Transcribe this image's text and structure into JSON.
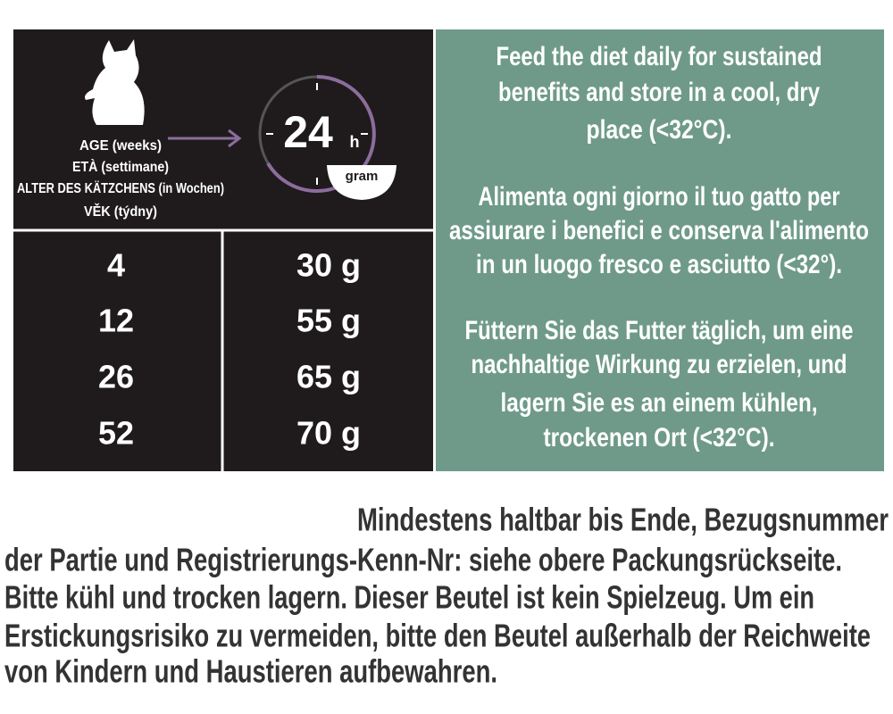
{
  "header": {
    "age_labels": [
      "AGE (weeks)",
      "ETÀ (settimane)",
      "ALTER DES KÄTZCHENS (in Wochen)",
      "VĚK (týdny)"
    ],
    "clock_number": "24",
    "clock_unit": "h",
    "bowl_label": "gram"
  },
  "table": {
    "rows": [
      [
        "4",
        "30 g"
      ],
      [
        "12",
        "55 g"
      ],
      [
        "26",
        "65 g"
      ],
      [
        "52",
        "70 g"
      ]
    ]
  },
  "storage": {
    "paragraphs": [
      [
        "Feed the diet daily for sustained",
        "benefits and store in a cool, dry",
        "place (<32°C)."
      ],
      [
        "Alimenta ogni giorno il tuo gatto per",
        "assiurare i benefici e conserva l'alimento",
        "in un luogo fresco e asciutto (<32°)."
      ],
      [
        "Füttern Sie das Futter täglich, um eine",
        "nachhaltige Wirkung zu erzielen, und",
        "lagern Sie es an einem kühlen,",
        "trockenen Ort (<32°C)."
      ]
    ]
  },
  "footer": {
    "lines": [
      "Mindestens haltbar bis Ende, Bezugsnummer",
      "der Partie und Registrierungs-Kenn-Nr: siehe obere Packungsrückseite.",
      "Bitte kühl und trocken lagern. Dieser Beutel ist kein Spielzeug. Um ein",
      "Erstickungsrisiko zu vermeiden, bitte den Beutel außerhalb der Reichweite",
      "von Kindern und Haustieren aufbewahren."
    ]
  }
}
